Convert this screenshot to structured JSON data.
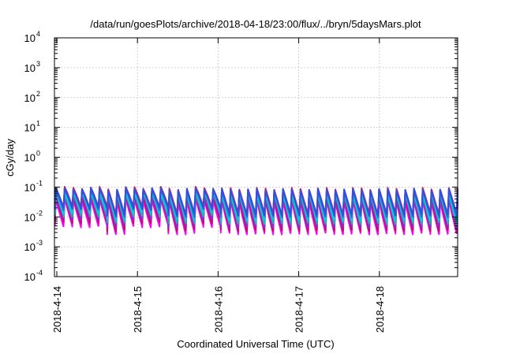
{
  "chart_data": {
    "type": "line",
    "title": "/data/run/goesPlots/archive/2018-04-18/23:00/flux/../bryn/5daysMars.plot",
    "xlabel": "Coordinated Universal Time (UTC)",
    "ylabel": "cGy/day",
    "y_scale": "log",
    "ylim": [
      0.0001,
      10000
    ],
    "x_range_days": [
      0,
      5.0
    ],
    "x_ticks": [
      {
        "label": "2018-4-14",
        "day": 0
      },
      {
        "label": "2018-4-15",
        "day": 1
      },
      {
        "label": "2018-4-16",
        "day": 2
      },
      {
        "label": "2018-4-17",
        "day": 3
      },
      {
        "label": "2018-4-18",
        "day": 4
      }
    ],
    "y_ticks": [
      {
        "base": "10",
        "exp": "-4",
        "value": 0.0001
      },
      {
        "base": "10",
        "exp": "-3",
        "value": 0.001
      },
      {
        "base": "10",
        "exp": "-2",
        "value": 0.01
      },
      {
        "base": "10",
        "exp": "-1",
        "value": 0.1
      },
      {
        "base": "10",
        "exp": "0",
        "value": 1
      },
      {
        "base": "10",
        "exp": "1",
        "value": 10
      },
      {
        "base": "10",
        "exp": "2",
        "value": 100
      },
      {
        "base": "10",
        "exp": "3",
        "value": 1000
      },
      {
        "base": "10",
        "exp": "4",
        "value": 10000
      }
    ],
    "grid": true,
    "legend": "none",
    "cycle_period_days": 0.1083,
    "series": [
      {
        "color": "#ff00ff",
        "peak": 0.035,
        "trough": 0.0048,
        "trough_low": 0.0028
      },
      {
        "color": "#c01060",
        "peak": 0.045,
        "trough": 0.0065,
        "trough_low": 0.0036
      },
      {
        "color": "#8a2be2",
        "peak": 0.052,
        "trough": 0.0085,
        "trough_low": 0.0048
      },
      {
        "color": "#20b2aa",
        "peak": 0.06,
        "trough": 0.011,
        "trough_low": 0.0062
      },
      {
        "color": "#00d0e0",
        "peak": 0.068,
        "trough": 0.014,
        "trough_low": 0.008
      },
      {
        "color": "#2e6fd8",
        "peak": 0.078,
        "trough": 0.018,
        "trough_low": 0.0105
      },
      {
        "color": "#d81b60",
        "peak": 0.088,
        "trough": 0.022,
        "trough_low": 0.013
      },
      {
        "color": "#3050e0",
        "peak": 0.082,
        "trough": 0.02,
        "trough_low": 0.012
      }
    ],
    "enhanced_intervals_days": [
      [
        0,
        0.55
      ],
      [
        0.8,
        1.35
      ],
      [
        1.72,
        2.02
      ]
    ]
  }
}
